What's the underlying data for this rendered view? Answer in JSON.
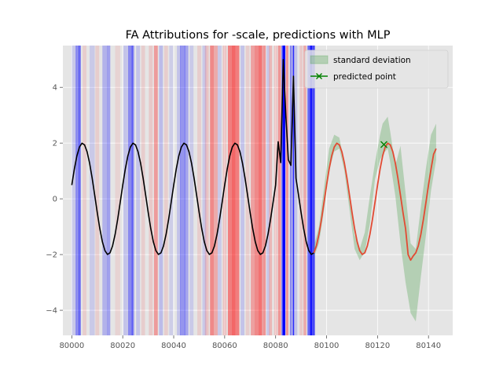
{
  "chart_data": {
    "type": "line",
    "title": "FA Attributions for -scale, predictions with MLP",
    "xlabel": "",
    "ylabel": "",
    "xlim": [
      79996.5,
      80149.5
    ],
    "ylim": [
      -4.9,
      5.5
    ],
    "x_ticks": [
      80000,
      80020,
      80040,
      80060,
      80080,
      80100,
      80120,
      80140
    ],
    "x_tick_labels": [
      "80000",
      "80020",
      "80040",
      "80060",
      "80080",
      "80100",
      "80120",
      "80140"
    ],
    "y_ticks": [
      -4,
      -2,
      0,
      2,
      4
    ],
    "y_tick_labels": [
      "−4",
      "−2",
      "0",
      "2",
      "4"
    ],
    "grid": true,
    "legend_position": "top-right",
    "legend": [
      {
        "label": "standard deviation",
        "kind": "patch",
        "color": "#5aa55a"
      },
      {
        "label": "predicted point",
        "kind": "line-marker",
        "color": "#008000"
      }
    ],
    "colors": {
      "background": "#e5e5e5",
      "grid": "#ffffff",
      "input_line": "#000000",
      "prediction_line": "#e24a33",
      "std_band": "#5aa55a",
      "positive_attr": "#0000ff",
      "negative_attr": "#ff0000"
    },
    "input_series": {
      "x_start": 80000,
      "x_end": 80095,
      "period": 20,
      "amplitude": 2,
      "phase_offset": 0.5,
      "spikes": [
        {
          "x": 80081,
          "y": 2.05
        },
        {
          "x": 80082,
          "y": 1.3
        },
        {
          "x": 80083,
          "y": 5.0
        },
        {
          "x": 80084,
          "y": 3.0
        },
        {
          "x": 80085,
          "y": 1.4
        },
        {
          "x": 80086,
          "y": 1.2
        },
        {
          "x": 80087,
          "y": 4.4
        }
      ]
    },
    "prediction_series": {
      "x_start": 80095,
      "x_end": 80143,
      "period": 20,
      "amplitude": 2,
      "phase_offset": 0.5,
      "x_adjust": [
        {
          "x": 80133,
          "y": -2.2
        },
        {
          "x": 80132,
          "y": -2.0
        },
        {
          "x": 80134,
          "y": -2.05
        },
        {
          "x": 80142,
          "y": 1.6
        },
        {
          "x": 80143,
          "y": 1.8
        }
      ]
    },
    "std_band": {
      "x": [
        80095,
        80097,
        80099,
        80101,
        80103,
        80105,
        80107,
        80109,
        80111,
        80113,
        80115,
        80117,
        80119,
        80121,
        80122,
        80124,
        80125,
        80127,
        80129,
        80131,
        80133,
        80135,
        80137,
        80139,
        80141,
        80143
      ],
      "upper": [
        -1.7,
        -1.0,
        0.4,
        1.8,
        2.3,
        2.2,
        1.3,
        0.0,
        -1.3,
        -1.8,
        -1.2,
        0.1,
        1.3,
        2.3,
        2.7,
        2.95,
        2.4,
        1.2,
        1.9,
        0.2,
        -1.6,
        -1.8,
        -0.3,
        1.1,
        2.3,
        2.7
      ],
      "lower": [
        -2.1,
        -1.6,
        -0.4,
        1.0,
        1.7,
        1.8,
        1.0,
        -0.4,
        -1.8,
        -2.2,
        -1.9,
        -0.9,
        0.7,
        1.4,
        1.6,
        1.8,
        1.3,
        0.1,
        -1.6,
        -3.0,
        -4.1,
        -4.4,
        -2.8,
        -1.3,
        0.3,
        1.4
      ]
    },
    "predicted_point": {
      "x": 80122.5,
      "y": 1.95
    },
    "attribution_bands": [
      {
        "x": 80001,
        "w": 2,
        "v": 0.12
      },
      {
        "x": 80002.5,
        "w": 2,
        "v": 0.35
      },
      {
        "x": 80003,
        "w": 1,
        "v": 0.3
      },
      {
        "x": 80005,
        "w": 1.5,
        "v": -0.1
      },
      {
        "x": 80008,
        "w": 2,
        "v": 0.12
      },
      {
        "x": 80010,
        "w": 1.5,
        "v": -0.1
      },
      {
        "x": 80013,
        "w": 2,
        "v": 0.22
      },
      {
        "x": 80014.5,
        "w": 1.2,
        "v": 0.3
      },
      {
        "x": 80018,
        "w": 2,
        "v": -0.08
      },
      {
        "x": 80021,
        "w": 1.5,
        "v": 0.15
      },
      {
        "x": 80023,
        "w": 2,
        "v": 0.4
      },
      {
        "x": 80024,
        "w": 1,
        "v": 0.35
      },
      {
        "x": 80026,
        "w": 1.5,
        "v": 0.15
      },
      {
        "x": 80028,
        "w": 1.5,
        "v": -0.1
      },
      {
        "x": 80031,
        "w": 1.5,
        "v": -0.12
      },
      {
        "x": 80033,
        "w": 1.5,
        "v": -0.32
      },
      {
        "x": 80035,
        "w": 1.5,
        "v": 0.18
      },
      {
        "x": 80037,
        "w": 1.5,
        "v": -0.1
      },
      {
        "x": 80039,
        "w": 1.5,
        "v": 0.1
      },
      {
        "x": 80042,
        "w": 1.5,
        "v": 0.15
      },
      {
        "x": 80043.5,
        "w": 2,
        "v": 0.35
      },
      {
        "x": 80045,
        "w": 1.5,
        "v": 0.28
      },
      {
        "x": 80047,
        "w": 1.5,
        "v": 0.12
      },
      {
        "x": 80050,
        "w": 1.5,
        "v": -0.1
      },
      {
        "x": 80052,
        "w": 1.5,
        "v": 0.12
      },
      {
        "x": 80053,
        "w": 1.5,
        "v": -0.15
      },
      {
        "x": 80055,
        "w": 1.5,
        "v": -0.4
      },
      {
        "x": 80056.5,
        "w": 1.5,
        "v": -0.25
      },
      {
        "x": 80058,
        "w": 1.5,
        "v": 0.12
      },
      {
        "x": 80060,
        "w": 1.5,
        "v": -0.15
      },
      {
        "x": 80062,
        "w": 1.5,
        "v": -0.45
      },
      {
        "x": 80063.5,
        "w": 1.5,
        "v": -0.55
      },
      {
        "x": 80065,
        "w": 1.5,
        "v": -0.45
      },
      {
        "x": 80067,
        "w": 1.5,
        "v": 0.15
      },
      {
        "x": 80069,
        "w": 1.5,
        "v": -0.1
      },
      {
        "x": 80071,
        "w": 1.5,
        "v": -0.3
      },
      {
        "x": 80072.5,
        "w": 1.5,
        "v": -0.4
      },
      {
        "x": 80074,
        "w": 1.5,
        "v": -0.5
      },
      {
        "x": 80075.5,
        "w": 1.2,
        "v": -0.35
      },
      {
        "x": 80077,
        "w": 1.2,
        "v": 0.12
      },
      {
        "x": 80078,
        "w": 1.2,
        "v": -0.2
      },
      {
        "x": 80080,
        "w": 1.2,
        "v": -0.15
      },
      {
        "x": 80081.5,
        "w": 1.2,
        "v": -0.35
      },
      {
        "x": 80082.6,
        "w": 0.5,
        "v": 0.6
      },
      {
        "x": 80083.3,
        "w": 1,
        "v": 1.0
      },
      {
        "x": 80084.5,
        "w": 1,
        "v": -0.35
      },
      {
        "x": 80086,
        "w": 0.8,
        "v": 0.4
      },
      {
        "x": 80087,
        "w": 0.6,
        "v": 0.8
      },
      {
        "x": 80088,
        "w": 1,
        "v": 0.15
      },
      {
        "x": 80090,
        "w": 1.2,
        "v": -0.12
      },
      {
        "x": 80091.5,
        "w": 1.2,
        "v": -0.25
      },
      {
        "x": 80093,
        "w": 1,
        "v": 0.55
      },
      {
        "x": 80094,
        "w": 1,
        "v": 0.9
      },
      {
        "x": 80095,
        "w": 0.8,
        "v": 0.7
      }
    ]
  }
}
